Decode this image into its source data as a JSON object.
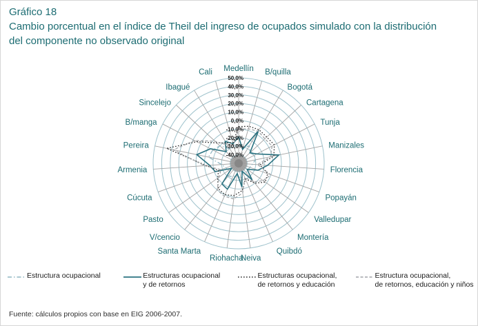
{
  "figure": {
    "number": "Gráfico 18",
    "title": "Cambio porcentual en el índice de Theil del ingreso de ocupados simulado con la distribución del componente no observado original",
    "source": "Fuente: cálculos propios con base en EIG 2006-2007."
  },
  "colors": {
    "title_teal": "#1c6c72",
    "city_label": "#1c6c72",
    "ring": "#9ec2cc",
    "spoke": "#a3a3a3",
    "tick_label": "#1a1a1a",
    "center_blob": "#969696",
    "series1": "#8fb6c2",
    "series2": "#2a7280",
    "series3": "#2b2b2b",
    "series4": "#a0a4a8"
  },
  "chart_data": {
    "type": "radar",
    "title": "Cambio porcentual en el índice de Theil del ingreso de ocupados simulado con la distribución del componente no observado original",
    "categories": [
      "Medellín",
      "B/quilla",
      "Bogotá",
      "Cartagena",
      "Tunja",
      "Manizales",
      "Florencia",
      "Popayán",
      "Valledupar",
      "Montería",
      "Quibdó",
      "Neiva",
      "Riohacha",
      "Santa Marta",
      "V/cencio",
      "Pasto",
      "Cúcuta",
      "Armenia",
      "Pereira",
      "B/manga",
      "Sincelejo",
      "Ibagué",
      "Cali"
    ],
    "radial_ticks": [
      "50,0%",
      "40,0%",
      "30,0%",
      "20,0%",
      "10,0%",
      "0,0%",
      "-10,0%",
      "-20,0%",
      "-30,0%",
      "-40,0%"
    ],
    "rmin": -50,
    "rmax": 50,
    "grid": "circular, 10 rings at 10% steps, 23 spokes",
    "legend_position": "bottom",
    "series": [
      {
        "name": "Estructura ocupacional",
        "style": "dashdot",
        "color": "#8fb6c2",
        "values": [
          -28,
          -31,
          -26,
          -32,
          -29,
          -30,
          -34,
          -36,
          -37,
          -36,
          -38,
          -32,
          -36,
          -33,
          -31,
          -36,
          -34,
          -30,
          -14,
          -16,
          -20,
          -30,
          -28
        ]
      },
      {
        "name": "Estructuras ocupacional y de retornos",
        "style": "solid",
        "color": "#2a7280",
        "values": [
          -19,
          -33,
          -5,
          -32,
          -26,
          -2,
          -16,
          -26,
          -38,
          -25,
          -40,
          -22,
          -38,
          -17,
          -19,
          -40,
          -21,
          -16,
          0,
          -13,
          -30,
          -20,
          -26
        ]
      },
      {
        "name": "Estructuras ocupacional, de retornos y educación",
        "style": "dotted",
        "color": "#2b2b2b",
        "values": [
          -7,
          -5,
          -4,
          -5,
          -3,
          -8,
          -25,
          -14,
          -12,
          -20,
          -30,
          -18,
          -12,
          -10,
          -12,
          -20,
          -25,
          -12,
          36,
          5,
          -15,
          -22,
          -25
        ]
      },
      {
        "name": "Estructura ocupacional, de retornos, educación y niños",
        "style": "dashed",
        "color": "#a0a4a8",
        "values": [
          -10,
          -8,
          -6,
          -8,
          -6,
          -12,
          -28,
          -10,
          -15,
          -22,
          -32,
          -15,
          -8,
          -8,
          -10,
          -22,
          -28,
          -10,
          28,
          8,
          -12,
          -25,
          -28
        ]
      }
    ]
  },
  "legend": {
    "items": [
      {
        "line1": "Estructura ocupacional",
        "line2": ""
      },
      {
        "line1": "Estructuras ocupacional",
        "line2": "y de retornos"
      },
      {
        "line1": "Estructuras ocupacional,",
        "line2": "de retornos y educación"
      },
      {
        "line1": "Estructura ocupacional,",
        "line2": "de retornos, educación y niños"
      }
    ]
  }
}
